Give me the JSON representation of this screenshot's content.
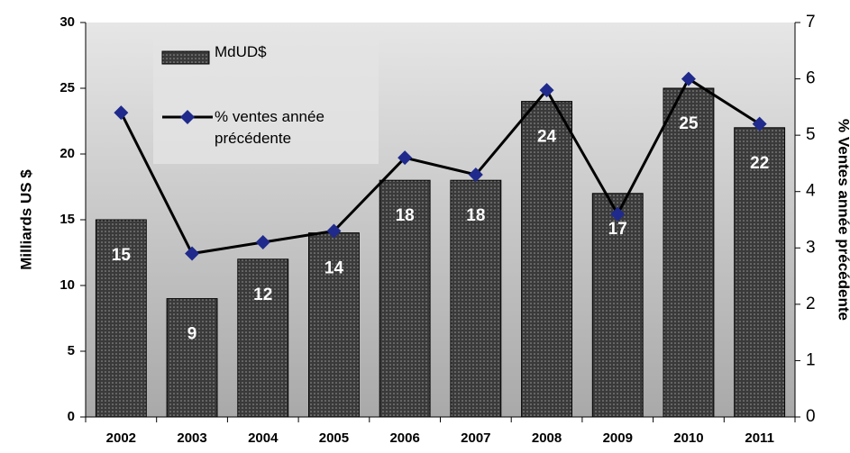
{
  "chart_data": {
    "type": "bar_line",
    "categories": [
      "2002",
      "2003",
      "2004",
      "2005",
      "2006",
      "2007",
      "2008",
      "2009",
      "2010",
      "2011"
    ],
    "series": [
      {
        "name": "MdUD$",
        "type": "bar",
        "color": "#3a3a3a",
        "values": [
          15,
          9,
          12,
          14,
          18,
          18,
          24,
          17,
          25,
          22
        ]
      },
      {
        "name": "% ventes année précédente",
        "type": "line",
        "axis": "y2",
        "color": "#000000",
        "marker_color": "#1f2a8c",
        "values": [
          5.4,
          2.9,
          3.1,
          3.3,
          4.6,
          4.3,
          5.8,
          3.6,
          6.0,
          5.2
        ]
      }
    ],
    "ylabel": "Milliards US $",
    "y2label": "% Ventes année précédente",
    "ylim": [
      0,
      30
    ],
    "yticks": [
      0,
      5,
      10,
      15,
      20,
      25,
      30
    ],
    "y2lim": [
      0,
      7
    ],
    "y2ticks": [
      0,
      1,
      2,
      3,
      4,
      5,
      6,
      7
    ],
    "data_labels": true
  }
}
